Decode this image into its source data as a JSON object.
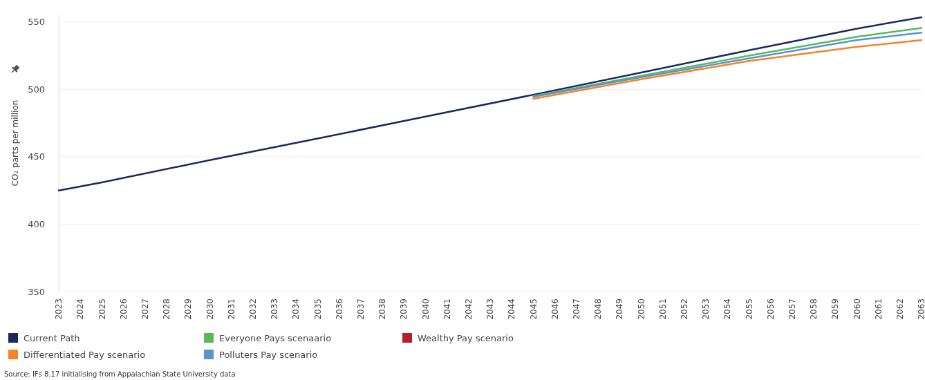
{
  "chart_data": {
    "type": "line",
    "ylabel": "CO₂ parts per million",
    "x": [
      2023,
      2025,
      2030,
      2035,
      2040,
      2045,
      2050,
      2055,
      2060,
      2063
    ],
    "series": [
      {
        "name": "Current Path",
        "color": "#1b2a5e",
        "values": [
          425,
          431,
          447.5,
          463.5,
          479.8,
          496,
          512.5,
          529,
          545,
          553.5
        ]
      },
      {
        "name": "Differentiated Pay scenario",
        "color": "#f58426",
        "values": [
          null,
          null,
          null,
          null,
          null,
          493,
          507.5,
          521,
          531.5,
          536.5
        ]
      },
      {
        "name": "Everyone Pays scenaario",
        "color": "#5cb85c",
        "values": [
          null,
          null,
          null,
          null,
          null,
          495,
          510,
          525,
          539,
          545.5
        ]
      },
      {
        "name": "Polluters Pay scenario",
        "color": "#5b93d1",
        "values": [
          null,
          null,
          null,
          null,
          null,
          494.5,
          509,
          523,
          536.5,
          542
        ]
      },
      {
        "name": "Wealthy Pay scenario",
        "color": "#b3202a",
        "values": [
          null,
          null,
          null,
          null,
          null,
          null,
          null,
          null,
          null,
          null
        ]
      }
    ],
    "xlim": [
      2023,
      2063
    ],
    "xticks": [
      2023,
      2024,
      2025,
      2026,
      2027,
      2028,
      2029,
      2030,
      2031,
      2032,
      2033,
      2034,
      2035,
      2036,
      2037,
      2038,
      2039,
      2040,
      2041,
      2042,
      2043,
      2044,
      2045,
      2046,
      2047,
      2048,
      2049,
      2050,
      2051,
      2052,
      2053,
      2054,
      2055,
      2056,
      2057,
      2058,
      2059,
      2060,
      2061,
      2062,
      2063
    ],
    "ylim": [
      350,
      555
    ],
    "yticks": [
      350,
      400,
      450,
      500,
      550
    ],
    "grid": "y",
    "legend": "bottom",
    "line_style": "solid",
    "annotations": [
      "Source: IFs 8.17 initialising from Appalachian State University data"
    ]
  }
}
